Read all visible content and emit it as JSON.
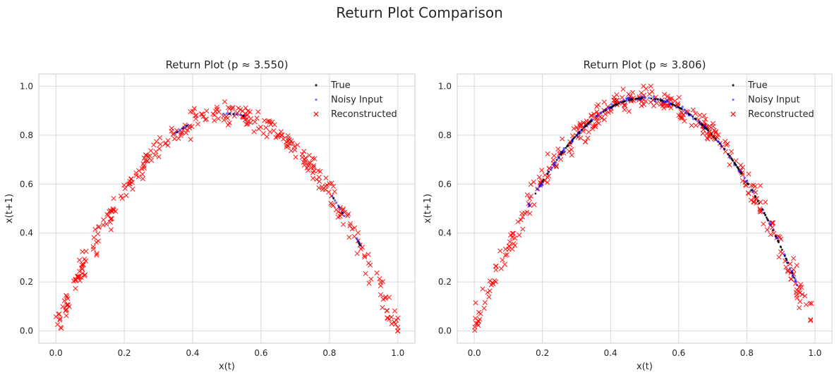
{
  "figure": {
    "title": "Return Plot Comparison"
  },
  "chart_data": [
    {
      "type": "scatter",
      "title": "Return Plot (p ≈ 3.550)",
      "xlabel": "x(t)",
      "ylabel": "x(t+1)",
      "xlim": [
        -0.05,
        1.05
      ],
      "ylim": [
        -0.05,
        1.05
      ],
      "xticks": [
        "0.0",
        "0.2",
        "0.4",
        "0.6",
        "0.8",
        "1.0"
      ],
      "yticks": [
        "0.0",
        "0.2",
        "0.4",
        "0.6",
        "0.8",
        "1.0"
      ],
      "grid": true,
      "legend_position": "top-right",
      "r": 3.55,
      "series": [
        {
          "name": "True",
          "marker": "dot",
          "color": "#000000",
          "points": [
            [
              0.354,
              0.812
            ],
            [
              0.812,
              0.542
            ],
            [
              0.884,
              0.364
            ],
            [
              0.507,
              0.887
            ],
            [
              0.371,
              0.828
            ],
            [
              0.828,
              0.506
            ],
            [
              0.887,
              0.356
            ],
            [
              0.52,
              0.886
            ],
            [
              0.383,
              0.839
            ],
            [
              0.838,
              0.482
            ],
            [
              0.889,
              0.35
            ],
            [
              0.548,
              0.879
            ]
          ]
        },
        {
          "name": "Noisy Input",
          "marker": "dot",
          "color": "#0000ff",
          "points": [
            [
              0.35,
              0.808
            ],
            [
              0.356,
              0.814
            ],
            [
              0.362,
              0.82
            ],
            [
              0.368,
              0.826
            ],
            [
              0.374,
              0.831
            ],
            [
              0.38,
              0.835
            ],
            [
              0.386,
              0.84
            ],
            [
              0.808,
              0.551
            ],
            [
              0.812,
              0.543
            ],
            [
              0.816,
              0.533
            ],
            [
              0.82,
              0.524
            ],
            [
              0.826,
              0.512
            ],
            [
              0.832,
              0.498
            ],
            [
              0.838,
              0.484
            ],
            [
              0.844,
              0.47
            ],
            [
              0.88,
              0.378
            ],
            [
              0.883,
              0.371
            ],
            [
              0.886,
              0.364
            ],
            [
              0.889,
              0.357
            ],
            [
              0.892,
              0.35
            ],
            [
              0.49,
              0.887
            ],
            [
              0.5,
              0.888
            ],
            [
              0.51,
              0.888
            ],
            [
              0.52,
              0.887
            ],
            [
              0.53,
              0.885
            ],
            [
              0.54,
              0.883
            ],
            [
              0.55,
              0.88
            ]
          ]
        },
        {
          "name": "Reconstructed",
          "marker": "x",
          "color": "#ff0000",
          "noise": 0.022,
          "count": 340
        }
      ]
    },
    {
      "type": "scatter",
      "title": "Return Plot (p ≈ 3.806)",
      "xlabel": "x(t)",
      "ylabel": "x(t+1)",
      "xlim": [
        -0.05,
        1.05
      ],
      "ylim": [
        -0.05,
        1.05
      ],
      "xticks": [
        "0.0",
        "0.2",
        "0.4",
        "0.6",
        "0.8",
        "1.0"
      ],
      "yticks": [
        "0.0",
        "0.2",
        "0.4",
        "0.6",
        "0.8",
        "1.0"
      ],
      "grid": true,
      "legend_position": "top-right",
      "r": 3.806,
      "series": [
        {
          "name": "True",
          "marker": "dot",
          "color": "#000000",
          "x_range": [
            0.17,
            0.94
          ],
          "count": 150
        },
        {
          "name": "Noisy Input",
          "marker": "dot",
          "color": "#0000ff",
          "x_range": [
            0.16,
            0.95
          ],
          "count": 170
        },
        {
          "name": "Reconstructed",
          "marker": "x",
          "color": "#ff0000",
          "noise": 0.024,
          "count": 360
        }
      ]
    }
  ]
}
